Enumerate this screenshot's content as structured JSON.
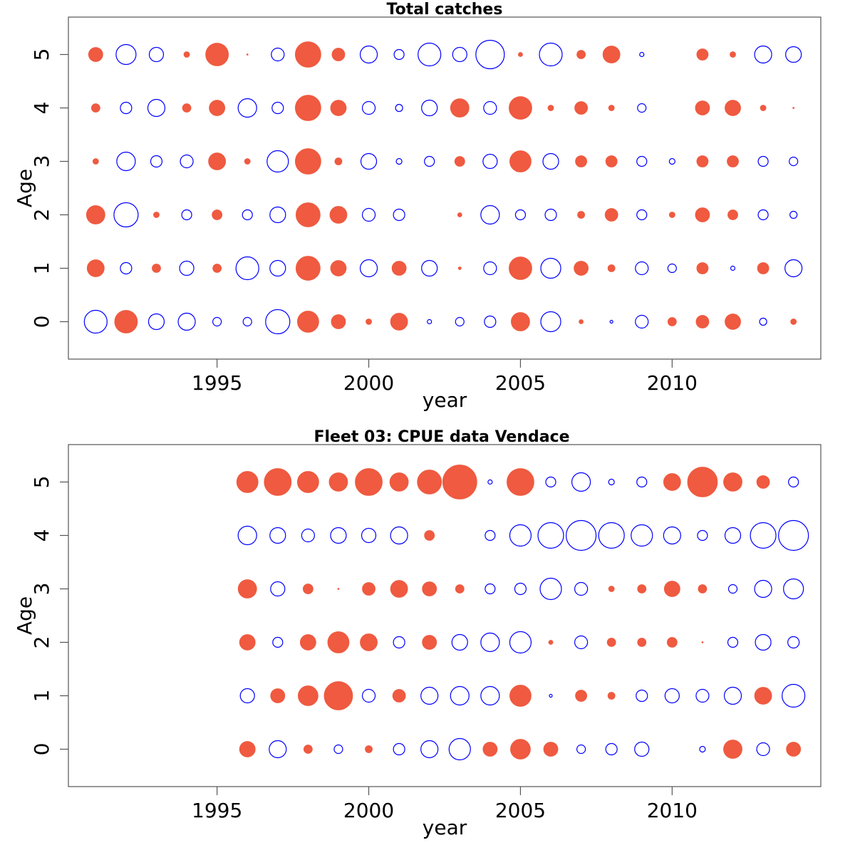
{
  "chart_data": [
    {
      "type": "scatter",
      "title": "Total catches",
      "xlabel": "year",
      "ylabel": "Age",
      "x_ticks": [
        1995,
        2000,
        2005,
        2010
      ],
      "y_ticks": [
        0,
        1,
        2,
        3,
        4,
        5
      ],
      "xlim": [
        1990.1,
        2014.9
      ],
      "ylim": [
        -0.7,
        5.7
      ],
      "grid": false,
      "encoding": {
        "positive_color": "#ef5a40",
        "negative_color": "#0000ff"
      },
      "years": [
        1991,
        1992,
        1993,
        1994,
        1995,
        1996,
        1997,
        1998,
        1999,
        2000,
        2001,
        2002,
        2003,
        2004,
        2005,
        2006,
        2007,
        2008,
        2009,
        2010,
        2011,
        2012,
        2013,
        2014
      ],
      "ages": [
        0,
        1,
        2,
        3,
        4,
        5
      ],
      "residuals": [
        [
          -16,
          16,
          -11,
          -12,
          -6,
          -6,
          -17,
          15,
          10,
          4,
          12,
          -3,
          -6,
          -8,
          13,
          -14,
          3,
          -2,
          -9,
          6,
          9,
          11,
          -5,
          4
        ],
        [
          12,
          -8,
          6,
          -10,
          6,
          -16,
          -11,
          17,
          11,
          -12,
          10,
          -11,
          2,
          -9,
          16,
          -14,
          10,
          5,
          -9,
          -6,
          8,
          -3,
          8,
          -12
        ],
        [
          13,
          -17,
          4,
          -7,
          7,
          -7,
          -11,
          17,
          12,
          -9,
          -8,
          0,
          3,
          -13,
          -7,
          -8,
          5,
          9,
          -7,
          4,
          10,
          7,
          -7,
          -5
        ],
        [
          4,
          -13,
          -8,
          -9,
          12,
          4,
          -15,
          18,
          5,
          -11,
          -4,
          -7,
          7,
          -10,
          15,
          -11,
          8,
          8,
          -7,
          -4,
          8,
          8,
          -7,
          -6
        ],
        [
          6,
          -8,
          -12,
          6,
          11,
          -13,
          -8,
          18,
          11,
          -9,
          -5,
          -11,
          13,
          -9,
          16,
          4,
          9,
          4,
          -6,
          0,
          10,
          11,
          4,
          1
        ],
        [
          10,
          -14,
          -10,
          4,
          16,
          1,
          -9,
          18,
          9,
          -12,
          -7,
          -16,
          -10,
          -20,
          3,
          -16,
          6,
          12,
          -3,
          0,
          8,
          4,
          -12,
          -11
        ]
      ]
    },
    {
      "type": "scatter",
      "title": "Fleet 03:  CPUE data Vendace",
      "xlabel": "year",
      "ylabel": "Age",
      "x_ticks": [
        1995,
        2000,
        2005,
        2010
      ],
      "y_ticks": [
        0,
        1,
        2,
        3,
        4,
        5
      ],
      "xlim": [
        1990.1,
        2014.9
      ],
      "ylim": [
        -0.7,
        5.7
      ],
      "grid": false,
      "encoding": {
        "positive_color": "#ef5a40",
        "negative_color": "#0000ff"
      },
      "years": [
        1996,
        1997,
        1998,
        1999,
        2000,
        2001,
        2002,
        2003,
        2004,
        2005,
        2006,
        2007,
        2008,
        2009,
        2010,
        2011,
        2012,
        2013,
        2014
      ],
      "ages": [
        0,
        1,
        2,
        3,
        4,
        5
      ],
      "residuals": [
        [
          11,
          -12,
          6,
          -6,
          5,
          -8,
          -12,
          -15,
          10,
          14,
          10,
          -6,
          -8,
          -10,
          0,
          -4,
          13,
          -9,
          10
        ],
        [
          -10,
          10,
          14,
          20,
          -9,
          9,
          -12,
          -13,
          -13,
          15,
          -2,
          8,
          5,
          -8,
          -10,
          -9,
          -12,
          12,
          -16
        ],
        [
          11,
          -7,
          11,
          15,
          12,
          -8,
          10,
          -11,
          -13,
          -15,
          3,
          -9,
          6,
          6,
          7,
          1,
          -7,
          -11,
          -8
        ],
        [
          13,
          -10,
          7,
          1,
          9,
          12,
          10,
          6,
          -7,
          -8,
          -15,
          -9,
          4,
          6,
          11,
          6,
          -6,
          -12,
          -14
        ],
        [
          -13,
          -11,
          -9,
          -11,
          -10,
          -12,
          7,
          0,
          -7,
          -15,
          -18,
          -21,
          -18,
          -15,
          -12,
          -7,
          -11,
          -18,
          -21
        ],
        [
          15,
          19,
          15,
          13,
          19,
          13,
          17,
          24,
          -3,
          19,
          -7,
          -13,
          -4,
          -7,
          12,
          21,
          13,
          9,
          -7
        ]
      ]
    }
  ]
}
